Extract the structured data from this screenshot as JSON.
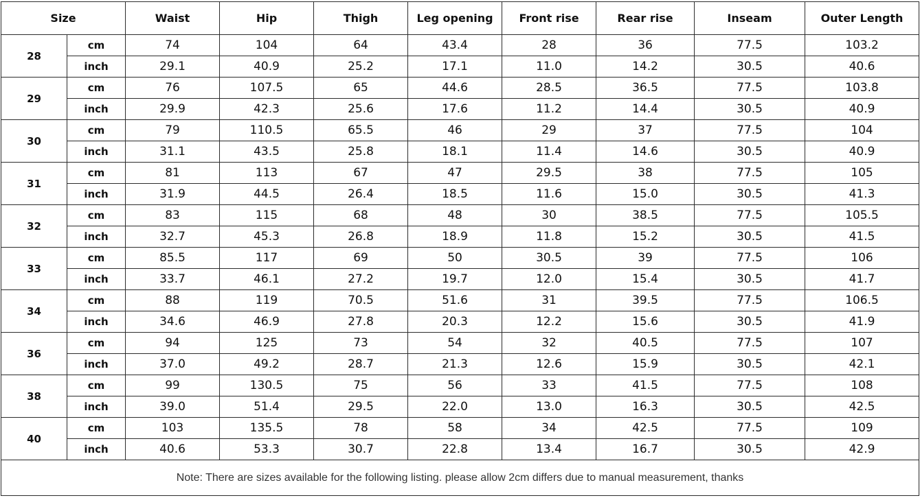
{
  "table": {
    "headers": [
      "Size",
      "Waist",
      "Hip",
      "Thigh",
      "Leg opening",
      "Front rise",
      "Rear rise",
      "Inseam",
      "Outer Length"
    ],
    "rows": [
      {
        "size": "28",
        "units": [
          {
            "unit": "cm",
            "values": [
              "74",
              "104",
              "64",
              "43.4",
              "28",
              "36",
              "77.5",
              "103.2"
            ]
          },
          {
            "unit": "inch",
            "values": [
              "29.1",
              "40.9",
              "25.2",
              "17.1",
              "11.0",
              "14.2",
              "30.5",
              "40.6"
            ]
          }
        ]
      },
      {
        "size": "29",
        "units": [
          {
            "unit": "cm",
            "values": [
              "76",
              "107.5",
              "65",
              "44.6",
              "28.5",
              "36.5",
              "77.5",
              "103.8"
            ]
          },
          {
            "unit": "inch",
            "values": [
              "29.9",
              "42.3",
              "25.6",
              "17.6",
              "11.2",
              "14.4",
              "30.5",
              "40.9"
            ]
          }
        ]
      },
      {
        "size": "30",
        "units": [
          {
            "unit": "cm",
            "values": [
              "79",
              "110.5",
              "65.5",
              "46",
              "29",
              "37",
              "77.5",
              "104"
            ]
          },
          {
            "unit": "inch",
            "values": [
              "31.1",
              "43.5",
              "25.8",
              "18.1",
              "11.4",
              "14.6",
              "30.5",
              "40.9"
            ]
          }
        ]
      },
      {
        "size": "31",
        "units": [
          {
            "unit": "cm",
            "values": [
              "81",
              "113",
              "67",
              "47",
              "29.5",
              "38",
              "77.5",
              "105"
            ]
          },
          {
            "unit": "inch",
            "values": [
              "31.9",
              "44.5",
              "26.4",
              "18.5",
              "11.6",
              "15.0",
              "30.5",
              "41.3"
            ]
          }
        ]
      },
      {
        "size": "32",
        "units": [
          {
            "unit": "cm",
            "values": [
              "83",
              "115",
              "68",
              "48",
              "30",
              "38.5",
              "77.5",
              "105.5"
            ]
          },
          {
            "unit": "inch",
            "values": [
              "32.7",
              "45.3",
              "26.8",
              "18.9",
              "11.8",
              "15.2",
              "30.5",
              "41.5"
            ]
          }
        ]
      },
      {
        "size": "33",
        "units": [
          {
            "unit": "cm",
            "values": [
              "85.5",
              "117",
              "69",
              "50",
              "30.5",
              "39",
              "77.5",
              "106"
            ]
          },
          {
            "unit": "inch",
            "values": [
              "33.7",
              "46.1",
              "27.2",
              "19.7",
              "12.0",
              "15.4",
              "30.5",
              "41.7"
            ]
          }
        ]
      },
      {
        "size": "34",
        "units": [
          {
            "unit": "cm",
            "values": [
              "88",
              "119",
              "70.5",
              "51.6",
              "31",
              "39.5",
              "77.5",
              "106.5"
            ]
          },
          {
            "unit": "inch",
            "values": [
              "34.6",
              "46.9",
              "27.8",
              "20.3",
              "12.2",
              "15.6",
              "30.5",
              "41.9"
            ]
          }
        ]
      },
      {
        "size": "36",
        "units": [
          {
            "unit": "cm",
            "values": [
              "94",
              "125",
              "73",
              "54",
              "32",
              "40.5",
              "77.5",
              "107"
            ]
          },
          {
            "unit": "inch",
            "values": [
              "37.0",
              "49.2",
              "28.7",
              "21.3",
              "12.6",
              "15.9",
              "30.5",
              "42.1"
            ]
          }
        ]
      },
      {
        "size": "38",
        "units": [
          {
            "unit": "cm",
            "values": [
              "99",
              "130.5",
              "75",
              "56",
              "33",
              "41.5",
              "77.5",
              "108"
            ]
          },
          {
            "unit": "inch",
            "values": [
              "39.0",
              "51.4",
              "29.5",
              "22.0",
              "13.0",
              "16.3",
              "30.5",
              "42.5"
            ]
          }
        ]
      },
      {
        "size": "40",
        "units": [
          {
            "unit": "cm",
            "values": [
              "103",
              "135.5",
              "78",
              "58",
              "34",
              "42.5",
              "77.5",
              "109"
            ]
          },
          {
            "unit": "inch",
            "values": [
              "40.6",
              "53.3",
              "30.7",
              "22.8",
              "13.4",
              "16.7",
              "30.5",
              "42.9"
            ]
          }
        ]
      }
    ],
    "note": "Note: There are sizes available for the following listing. please allow 2cm differs due to manual measurement, thanks"
  }
}
